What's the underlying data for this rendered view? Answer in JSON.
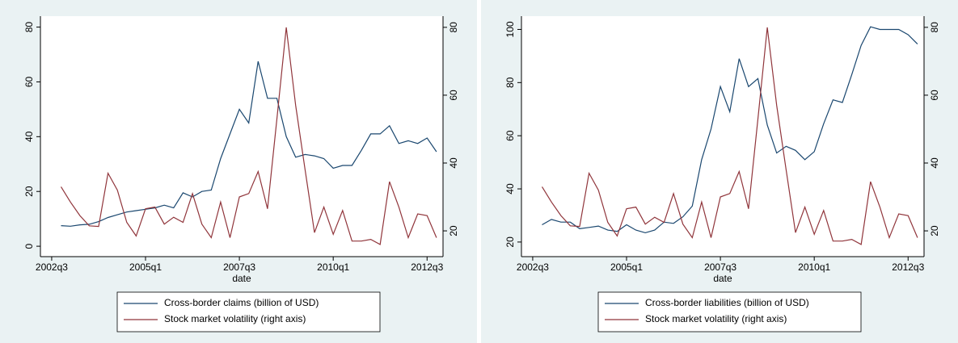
{
  "chart_data": [
    {
      "type": "line",
      "xlabel": "date",
      "x": [
        171,
        172,
        173,
        174,
        175,
        176,
        177,
        178,
        179,
        180,
        181,
        182,
        183,
        184,
        185,
        186,
        187,
        188,
        189,
        190,
        191,
        192,
        193,
        194,
        195,
        196,
        197,
        198,
        199,
        200,
        201,
        202,
        203,
        204,
        205,
        206,
        207,
        208,
        209,
        210,
        211
      ],
      "xlim": [
        168.8,
        211.7
      ],
      "xticks": [
        {
          "value": 170,
          "label": "2002q3"
        },
        {
          "value": 180,
          "label": "2005q1"
        },
        {
          "value": 190,
          "label": "2007q3"
        },
        {
          "value": 200,
          "label": "2010q1"
        },
        {
          "value": 210,
          "label": "2012q3"
        }
      ],
      "ylim": [
        -3.8,
        84
      ],
      "yticks": [
        0,
        20,
        40,
        60,
        80
      ],
      "y2lim": [
        12.4,
        83.3
      ],
      "y2ticks": [
        20,
        40,
        60,
        80
      ],
      "grid": false,
      "legend": "bottom",
      "series": [
        {
          "name": "Cross-border claims (billion of USD)",
          "color": "#1a476f",
          "values": [
            7.5,
            7.3,
            7.8,
            8,
            9,
            10.5,
            11.5,
            12.5,
            13,
            13.5,
            14,
            15,
            14,
            19.5,
            18,
            20,
            20.5,
            32,
            41,
            50,
            45,
            67.5,
            54,
            54,
            40,
            32.5,
            33.5,
            33,
            32,
            28.5,
            29.5,
            29.5,
            35,
            41,
            41,
            44,
            37.5,
            38.5,
            37.5,
            39.5,
            34.5
          ]
        },
        {
          "name": "Stock market volatility (right axis)",
          "color": "#90353b",
          "axis": "y2",
          "values": [
            33,
            28.5,
            24.5,
            21.5,
            21.3,
            37,
            32,
            22.5,
            18.5,
            26.5,
            27,
            22,
            24,
            22.5,
            31,
            22,
            18,
            28.5,
            18,
            30,
            31,
            37.5,
            26.5,
            53,
            80,
            57,
            38,
            19.5,
            27,
            19,
            26,
            17,
            17,
            17.5,
            16,
            34.5,
            27,
            18,
            25,
            24.5,
            18
          ]
        }
      ]
    },
    {
      "type": "line",
      "xlabel": "date",
      "x": [
        171,
        172,
        173,
        174,
        175,
        176,
        177,
        178,
        179,
        180,
        181,
        182,
        183,
        184,
        185,
        186,
        187,
        188,
        189,
        190,
        191,
        192,
        193,
        194,
        195,
        196,
        197,
        198,
        199,
        200,
        201,
        202,
        203,
        204,
        205,
        206,
        207,
        208,
        209,
        210,
        211
      ],
      "xlim": [
        168.8,
        211.7
      ],
      "xticks": [
        {
          "value": 170,
          "label": "2002q3"
        },
        {
          "value": 180,
          "label": "2005q1"
        },
        {
          "value": 190,
          "label": "2007q3"
        },
        {
          "value": 200,
          "label": "2010q1"
        },
        {
          "value": 210,
          "label": "2012q3"
        }
      ],
      "ylim": [
        14.5,
        105
      ],
      "yticks": [
        20,
        40,
        60,
        80,
        100
      ],
      "y2lim": [
        12.4,
        83.3
      ],
      "y2ticks": [
        20,
        40,
        60,
        80
      ],
      "grid": false,
      "legend": "bottom",
      "series": [
        {
          "name": "Cross-border liabilities (billion of USD)",
          "color": "#1a476f",
          "values": [
            26.5,
            28.5,
            27.5,
            27.5,
            25,
            25.5,
            26,
            24.5,
            24,
            26.5,
            24.5,
            23.5,
            24.5,
            27.5,
            27,
            29.5,
            33.5,
            51,
            62.5,
            78.5,
            69,
            89,
            78.5,
            81.5,
            64,
            53.5,
            56,
            54.5,
            51,
            54,
            64.5,
            73.5,
            72.5,
            83,
            94,
            101,
            100,
            100,
            100,
            98,
            94.5
          ]
        },
        {
          "name": "Stock market volatility (right axis)",
          "color": "#90353b",
          "axis": "y2",
          "values": [
            33,
            28.5,
            24.5,
            21.5,
            21.3,
            37,
            32,
            22.5,
            18.5,
            26.5,
            27,
            22,
            24,
            22.5,
            31,
            22,
            18,
            28.5,
            18,
            30,
            31,
            37.5,
            26.5,
            53,
            80,
            57,
            38,
            19.5,
            27,
            19,
            26,
            17,
            17,
            17.5,
            16,
            34.5,
            27,
            18,
            25,
            24.5,
            18
          ]
        }
      ]
    }
  ]
}
